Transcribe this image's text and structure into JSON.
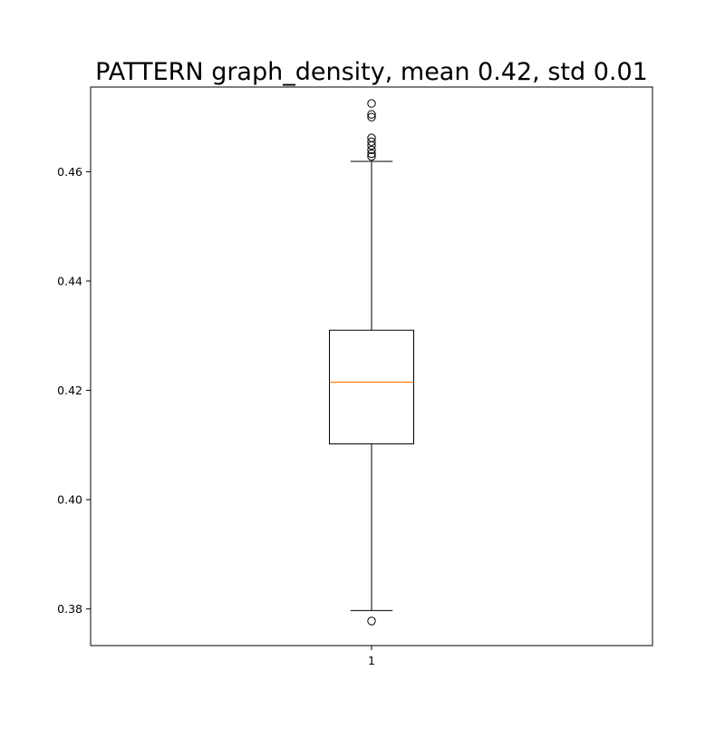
{
  "chart_data": {
    "type": "box",
    "title": "PATTERN graph_density, mean 0.42, std 0.01",
    "xlabel": "",
    "ylabel": "",
    "categories": [
      "1"
    ],
    "ylim": [
      0.3733,
      0.4755
    ],
    "yticks": [
      {
        "value": 0.38,
        "label": "0.38"
      },
      {
        "value": 0.4,
        "label": "0.40"
      },
      {
        "value": 0.42,
        "label": "0.42"
      },
      {
        "value": 0.44,
        "label": "0.44"
      },
      {
        "value": 0.46,
        "label": "0.46"
      }
    ],
    "grid": false,
    "boxes": [
      {
        "category": "1",
        "whisker_low": 0.3797,
        "q1": 0.4102,
        "median": 0.4215,
        "q3": 0.431,
        "whisker_high": 0.4619,
        "outliers": [
          0.3778,
          0.4628,
          0.4633,
          0.464,
          0.4648,
          0.4655,
          0.4662,
          0.47,
          0.4705,
          0.4725
        ]
      }
    ],
    "colors": {
      "box": "#000000",
      "median": "#ff7f0e",
      "outlier": "#000000",
      "background": "#ffffff"
    }
  }
}
